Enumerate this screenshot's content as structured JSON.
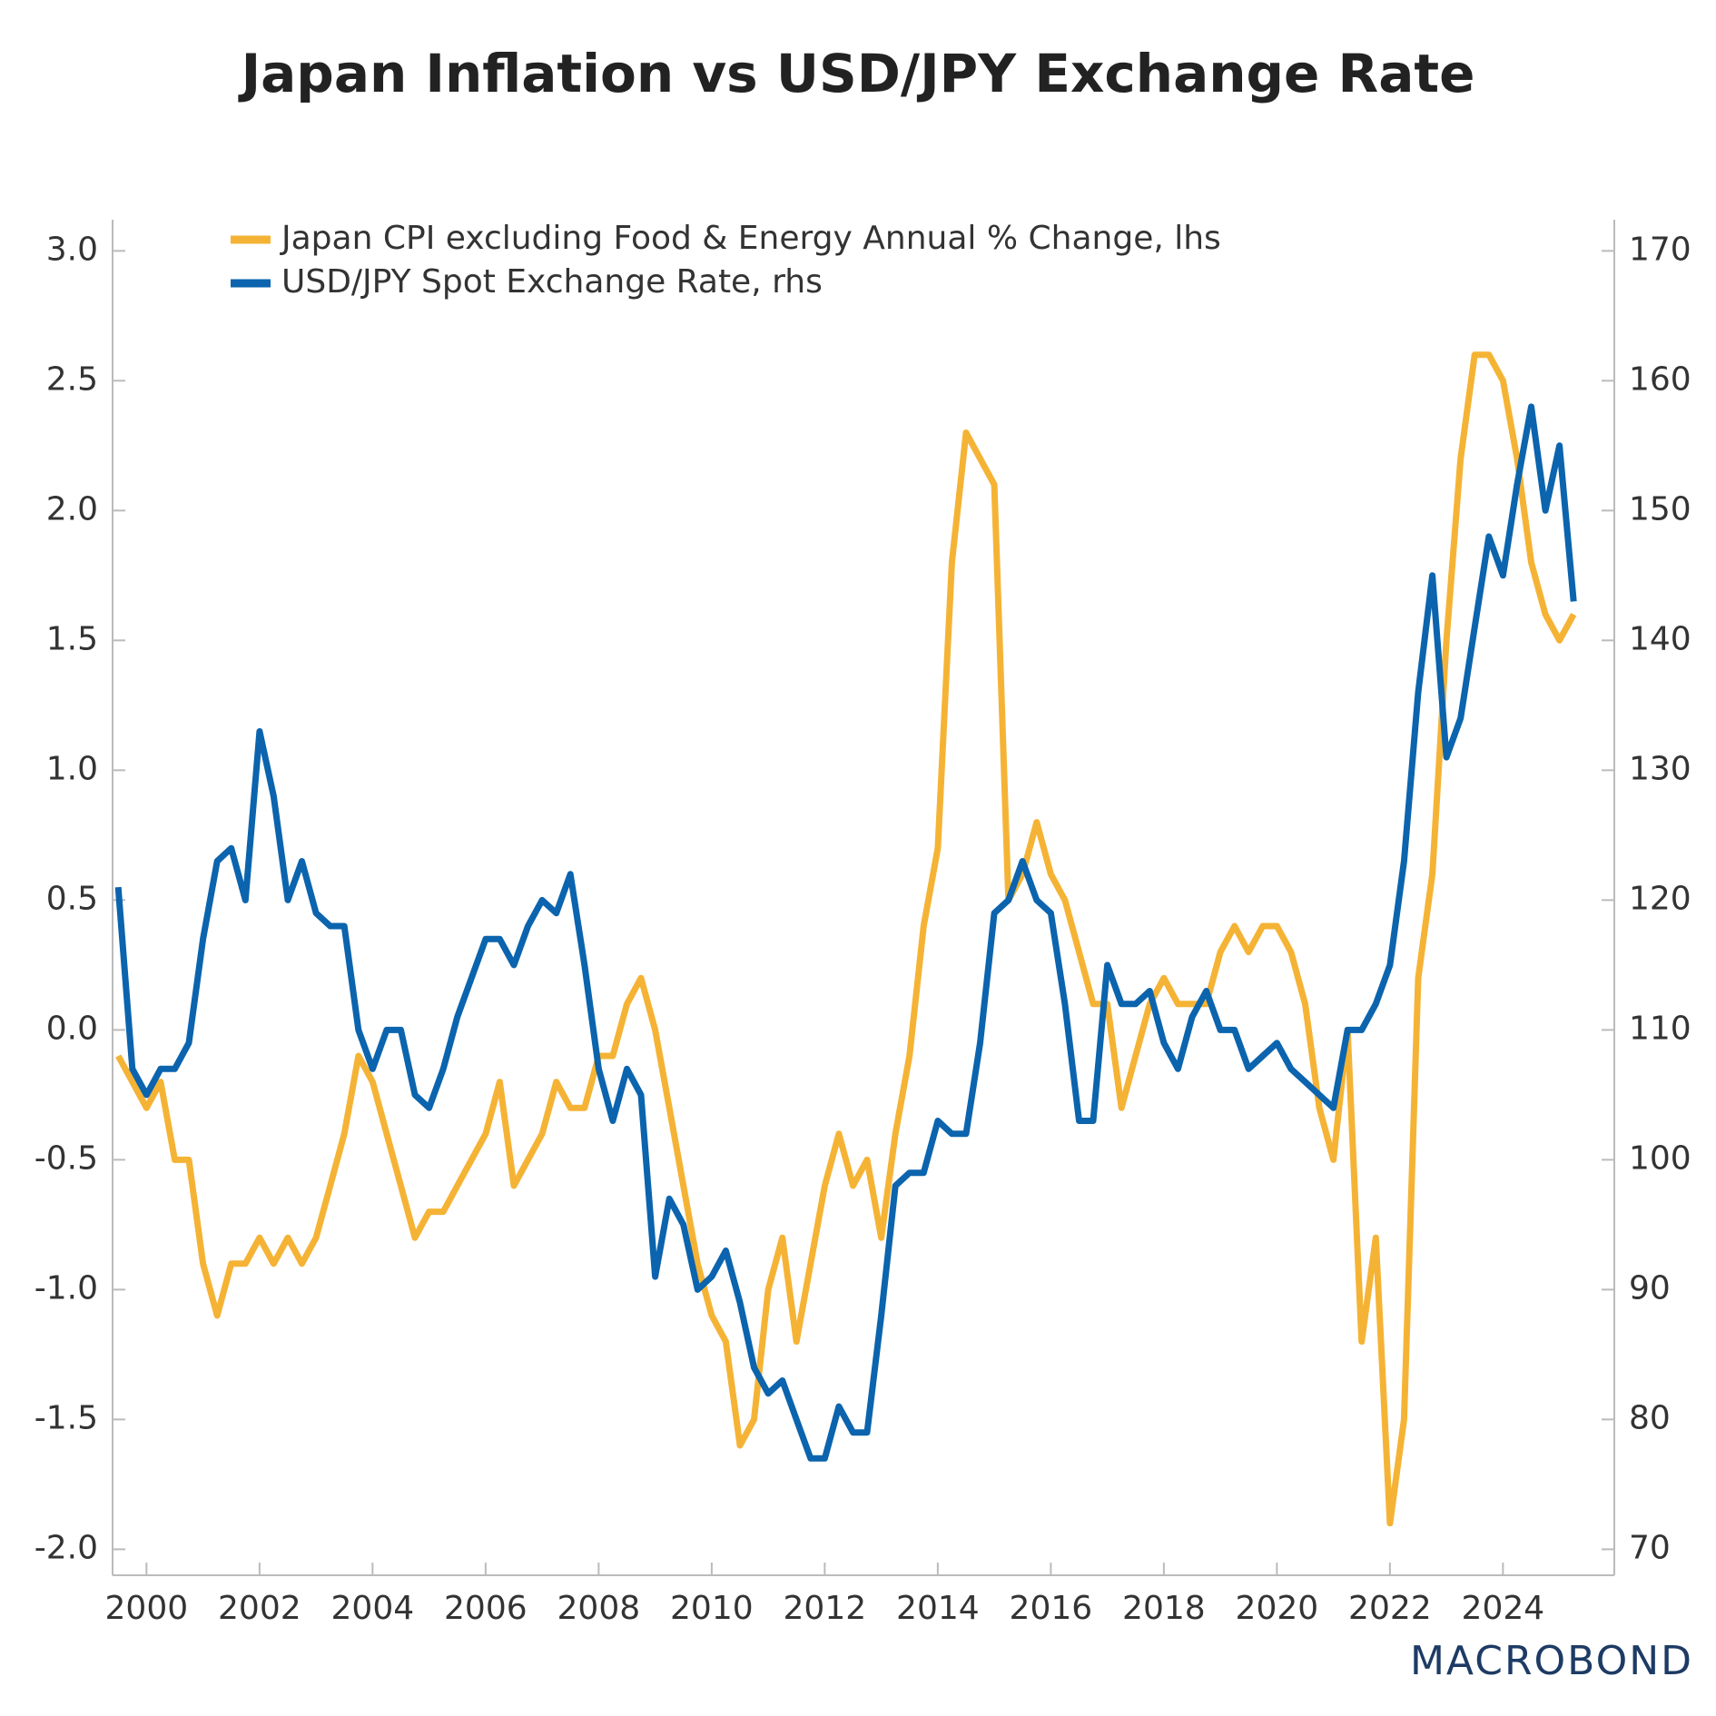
{
  "chart_data": {
    "type": "line",
    "title": "Japan Inflation vs USD/JPY Exchange Rate",
    "logo": "MACROBOND",
    "x": [
      1999.5,
      1999.75,
      2000,
      2000.25,
      2000.5,
      2000.75,
      2001,
      2001.25,
      2001.5,
      2001.75,
      2002,
      2002.25,
      2002.5,
      2002.75,
      2003,
      2003.25,
      2003.5,
      2003.75,
      2004,
      2004.25,
      2004.5,
      2004.75,
      2005,
      2005.25,
      2005.5,
      2005.75,
      2006,
      2006.25,
      2006.5,
      2006.75,
      2007,
      2007.25,
      2007.5,
      2007.75,
      2008,
      2008.25,
      2008.5,
      2008.75,
      2009,
      2009.25,
      2009.5,
      2009.75,
      2010,
      2010.25,
      2010.5,
      2010.75,
      2011,
      2011.25,
      2011.5,
      2011.75,
      2012,
      2012.25,
      2012.5,
      2012.75,
      2013,
      2013.25,
      2013.5,
      2013.75,
      2014,
      2014.25,
      2014.5,
      2014.75,
      2015,
      2015.25,
      2015.5,
      2015.75,
      2016,
      2016.25,
      2016.5,
      2016.75,
      2017,
      2017.25,
      2017.5,
      2017.75,
      2018,
      2018.25,
      2018.5,
      2018.75,
      2019,
      2019.25,
      2019.5,
      2019.75,
      2020,
      2020.25,
      2020.5,
      2020.75,
      2021,
      2021.25,
      2021.5,
      2021.75,
      2022,
      2022.25,
      2022.5,
      2022.75,
      2023,
      2023.25,
      2023.5,
      2023.75,
      2024,
      2024.25,
      2024.5,
      2024.75,
      2025,
      2025.25
    ],
    "series": [
      {
        "name": "Japan CPI excluding Food & Energy Annual % Change, lhs",
        "color": "#f5b335",
        "axis": "y",
        "values": [
          -0.1,
          -0.2,
          -0.3,
          -0.2,
          -0.5,
          -0.5,
          -0.9,
          -1.1,
          -0.9,
          -0.9,
          -0.8,
          -0.9,
          -0.8,
          -0.9,
          -0.8,
          -0.6,
          -0.4,
          -0.1,
          -0.2,
          -0.4,
          -0.6,
          -0.8,
          -0.7,
          -0.7,
          -0.6,
          -0.5,
          -0.4,
          -0.2,
          -0.6,
          -0.5,
          -0.4,
          -0.2,
          -0.3,
          -0.3,
          -0.1,
          -0.1,
          0.1,
          0.2,
          0.0,
          -0.3,
          -0.6,
          -0.9,
          -1.1,
          -1.2,
          -1.6,
          -1.5,
          -1.0,
          -0.8,
          -1.2,
          -0.9,
          -0.6,
          -0.4,
          -0.6,
          -0.5,
          -0.8,
          -0.4,
          -0.1,
          0.4,
          0.7,
          1.8,
          2.3,
          2.2,
          2.1,
          0.5,
          0.6,
          0.8,
          0.6,
          0.5,
          0.3,
          0.1,
          0.1,
          -0.3,
          -0.1,
          0.1,
          0.2,
          0.1,
          0.1,
          0.1,
          0.3,
          0.4,
          0.3,
          0.4,
          0.4,
          0.3,
          0.1,
          -0.3,
          -0.5,
          0.0,
          -1.2,
          -0.8,
          -1.9,
          -1.5,
          0.2,
          0.6,
          1.5,
          2.2,
          2.6,
          2.6,
          2.5,
          2.2,
          1.8,
          1.6,
          1.5,
          1.6
        ]
      },
      {
        "name": "USD/JPY Spot Exchange Rate, rhs",
        "color": "#0b64ad",
        "axis": "y2",
        "values": [
          121,
          107,
          105,
          107,
          107,
          109,
          117,
          123,
          124,
          120,
          133,
          128,
          120,
          123,
          119,
          118,
          118,
          110,
          107,
          110,
          110,
          105,
          104,
          107,
          111,
          114,
          117,
          117,
          115,
          118,
          120,
          119,
          122,
          115,
          107,
          103,
          107,
          105,
          91,
          97,
          95,
          90,
          91,
          93,
          89,
          84,
          82,
          83,
          80,
          77,
          77,
          81,
          79,
          79,
          88,
          98,
          99,
          99,
          103,
          102,
          102,
          109,
          119,
          120,
          123,
          120,
          119,
          112,
          103,
          103,
          115,
          112,
          112,
          113,
          109,
          107,
          111,
          113,
          110,
          110,
          107,
          108,
          109,
          107,
          106,
          105,
          104,
          110,
          110,
          112,
          115,
          123,
          136,
          145,
          131,
          134,
          141,
          148,
          145,
          152,
          158,
          150,
          155,
          143
        ]
      }
    ],
    "xlim": [
      1999.4,
      2025.97
    ],
    "xticks": [
      2000,
      2002,
      2004,
      2006,
      2008,
      2010,
      2012,
      2014,
      2016,
      2018,
      2020,
      2022,
      2024
    ],
    "ylim": [
      -2.1,
      3.12
    ],
    "yticks": [
      {
        "value": 3,
        "label": "3.0"
      },
      2.5,
      {
        "value": 2,
        "label": "2.0"
      },
      1.5,
      {
        "value": 1,
        "label": "1.0"
      },
      0.5,
      {
        "value": 0,
        "label": "0.0"
      },
      -0.5,
      {
        "value": -1,
        "label": "-1.0"
      },
      -1.5,
      {
        "value": -2,
        "label": "-2.0"
      }
    ],
    "y2lim": [
      68,
      172.4
    ],
    "y2ticks": [
      70,
      80,
      90,
      100,
      110,
      120,
      130,
      140,
      150,
      160,
      170
    ],
    "legend": "top-left",
    "grid": false
  }
}
